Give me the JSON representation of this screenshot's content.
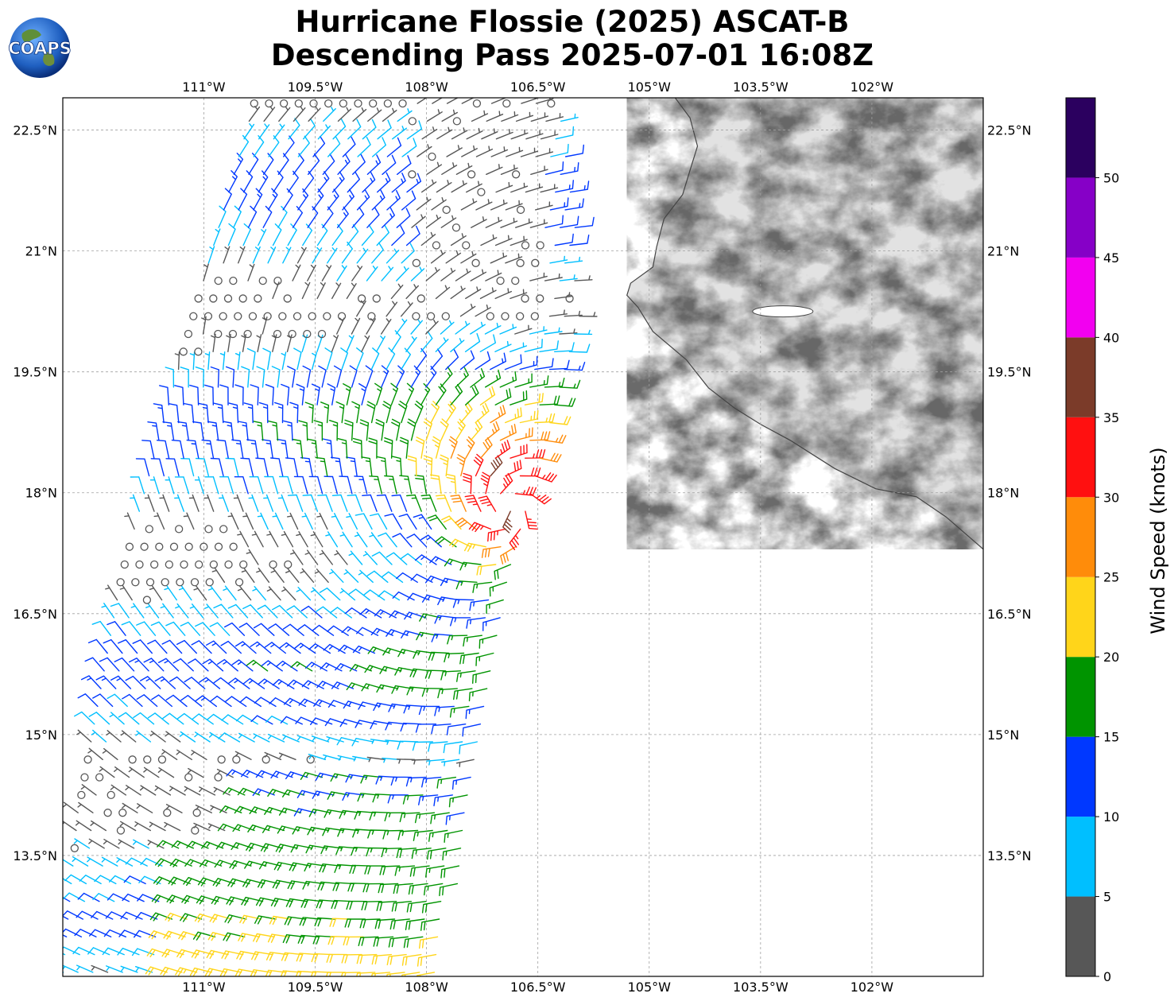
{
  "title": {
    "line1": "Hurricane Flossie (2025) ASCAT-B",
    "line2": "Descending Pass 2025-07-01 16:08Z"
  },
  "logo": {
    "text": "COAPS",
    "icon": "globe-logo-icon"
  },
  "map": {
    "lon_range": [
      -112.9,
      -100.5
    ],
    "lat_range": [
      12.0,
      22.9
    ],
    "lon_ticks": [
      {
        "value": -111.0,
        "label": "111°W"
      },
      {
        "value": -109.5,
        "label": "109.5°W"
      },
      {
        "value": -108.0,
        "label": "108°W"
      },
      {
        "value": -106.5,
        "label": "106.5°W"
      },
      {
        "value": -105.0,
        "label": "105°W"
      },
      {
        "value": -103.5,
        "label": "103.5°W"
      },
      {
        "value": -102.0,
        "label": "102°W"
      }
    ],
    "lat_ticks": [
      {
        "value": 22.5,
        "label": "22.5°N"
      },
      {
        "value": 21.0,
        "label": "21°N"
      },
      {
        "value": 19.5,
        "label": "19.5°N"
      },
      {
        "value": 18.0,
        "label": "18°N"
      },
      {
        "value": 16.5,
        "label": "16.5°N"
      },
      {
        "value": 15.0,
        "label": "15°N"
      },
      {
        "value": 13.5,
        "label": "13.5°N"
      }
    ],
    "grid": true,
    "storm_center": {
      "lon": -106.9,
      "lat": 17.8
    },
    "coastline": [
      [
        -104.65,
        22.9
      ],
      [
        -104.45,
        22.65
      ],
      [
        -104.35,
        22.3
      ],
      [
        -104.45,
        22.0
      ],
      [
        -104.55,
        21.7
      ],
      [
        -104.8,
        21.4
      ],
      [
        -104.9,
        21.05
      ],
      [
        -104.95,
        20.8
      ],
      [
        -105.25,
        20.6
      ],
      [
        -105.3,
        20.45
      ],
      [
        -105.15,
        20.3
      ],
      [
        -104.95,
        20.0
      ],
      [
        -104.5,
        19.65
      ],
      [
        -104.2,
        19.3
      ],
      [
        -103.85,
        19.05
      ],
      [
        -103.5,
        18.85
      ],
      [
        -103.1,
        18.65
      ],
      [
        -102.5,
        18.3
      ],
      [
        -101.95,
        18.05
      ],
      [
        -101.4,
        17.95
      ],
      [
        -101.0,
        17.7
      ],
      [
        -100.5,
        17.3
      ]
    ],
    "lake": {
      "lon": -103.2,
      "lat": 20.25
    }
  },
  "barbs": {
    "swath_east_edge": [
      [
        22.9,
        -106.2
      ],
      [
        20.5,
        -105.9
      ],
      [
        19.5,
        -106.0
      ],
      [
        17.0,
        -106.7
      ],
      [
        14.0,
        -107.4
      ],
      [
        12.0,
        -107.8
      ]
    ],
    "swath_west_edge": [
      [
        22.9,
        -110.3
      ],
      [
        20.0,
        -111.2
      ],
      [
        17.0,
        -112.1
      ],
      [
        14.0,
        -112.7
      ],
      [
        12.0,
        -112.9
      ]
    ]
  },
  "colorbar": {
    "label": "Wind Speed (knots)",
    "levels": [
      0,
      5,
      10,
      15,
      20,
      25,
      30,
      35,
      40,
      45,
      50,
      55
    ],
    "tick_labels": [
      "0",
      "5",
      "10",
      "15",
      "20",
      "25",
      "30",
      "35",
      "40",
      "45",
      "50"
    ],
    "colors": [
      "#575757",
      "#00bfff",
      "#0038ff",
      "#009400",
      "#ffd51a",
      "#ff8c0a",
      "#ff1010",
      "#7b3b29",
      "#f200f0",
      "#8600c7",
      "#2b005f"
    ]
  }
}
